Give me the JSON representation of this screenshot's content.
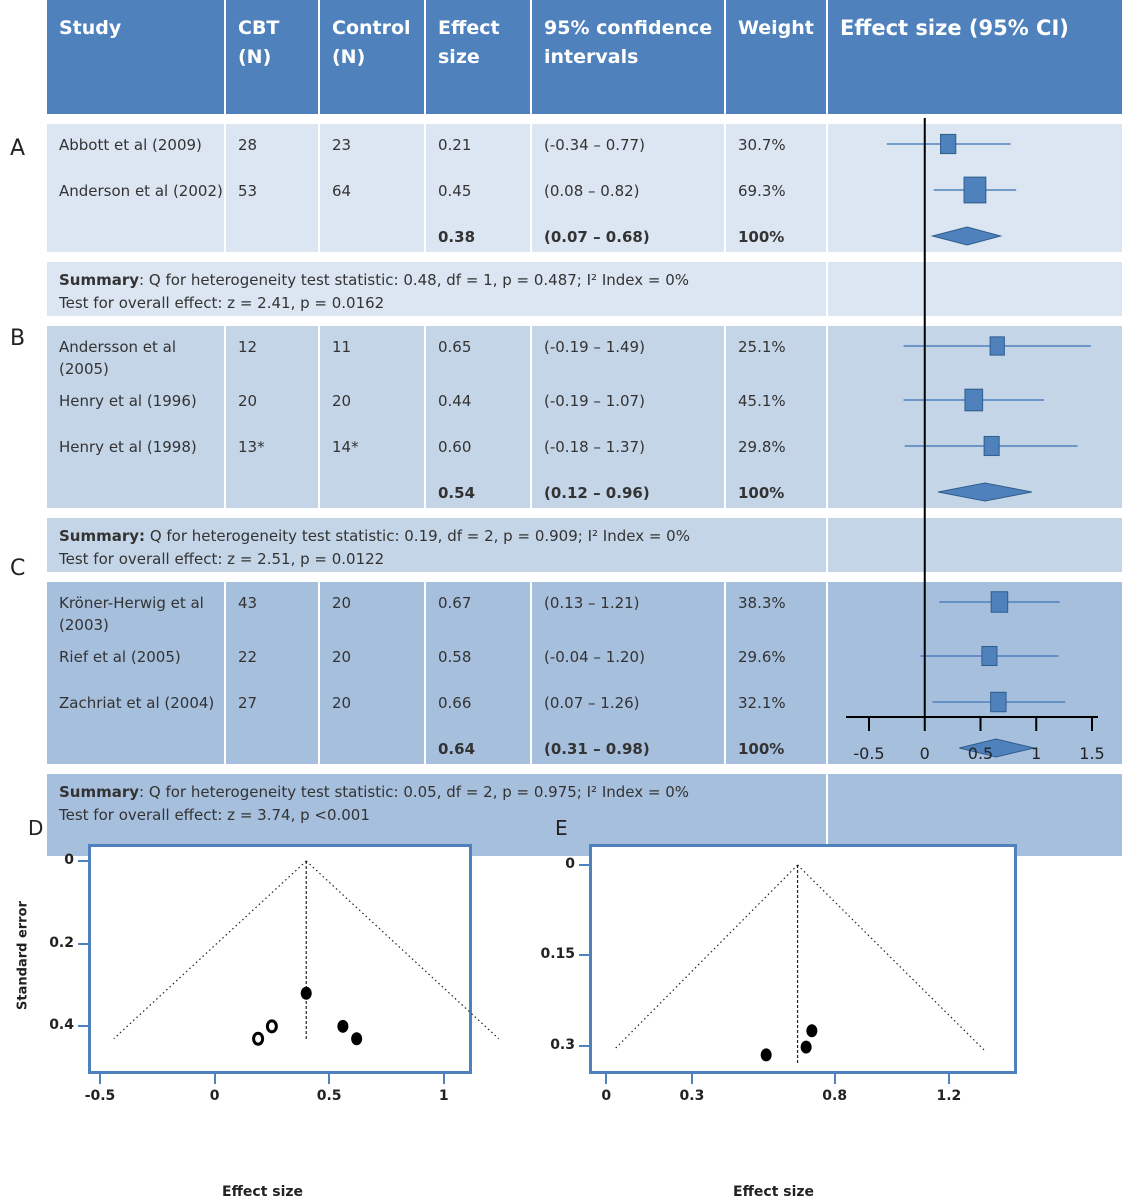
{
  "columns": {
    "study": "Study",
    "cbt": "CBT (N)",
    "control": "Control (N)",
    "effect": "Effect size",
    "ci": "95% confidence intervals",
    "weight": "Weight",
    "plot": "Effect size (95% CI)"
  },
  "groups": [
    {
      "label": "A",
      "studies": [
        {
          "study": "Abbott et al (2009)",
          "cbt": "28",
          "control": "23",
          "effect": "0.21",
          "ci": "(-0.34 – 0.77)",
          "weight": "30.7%",
          "es": 0.21,
          "lo": -0.34,
          "hi": 0.77
        },
        {
          "study": "Anderson et al (2002)",
          "cbt": "53",
          "control": "64",
          "effect": "0.45",
          "ci": "(0.08 – 0.82)",
          "weight": "69.3%",
          "es": 0.45,
          "lo": 0.08,
          "hi": 0.82
        }
      ],
      "pooled": {
        "effect": "0.38",
        "ci": "(0.07 – 0.68)",
        "weight": "100%",
        "es": 0.38,
        "lo": 0.07,
        "hi": 0.68
      },
      "summary_label": "Summary",
      "summary_line1": ": Q for heterogeneity test statistic: 0.48, df = 1, p = 0.487; I² Index = 0%",
      "summary_line2": "Test for overall effect: z = 2.41, p = 0.0162"
    },
    {
      "label": "B",
      "studies": [
        {
          "study": "Andersson et al (2005)",
          "cbt": "12",
          "control": "11",
          "effect": "0.65",
          "ci": "(-0.19 – 1.49)",
          "weight": "25.1%",
          "es": 0.65,
          "lo": -0.19,
          "hi": 1.49
        },
        {
          "study": "Henry et al (1996)",
          "cbt": "20",
          "control": "20",
          "effect": "0.44",
          "ci": "(-0.19 – 1.07)",
          "weight": "45.1%",
          "es": 0.44,
          "lo": -0.19,
          "hi": 1.07
        },
        {
          "study": "Henry et al (1998)",
          "cbt": "13*",
          "control": "14*",
          "effect": "0.60",
          "ci": "(-0.18 – 1.37)",
          "weight": "29.8%",
          "es": 0.6,
          "lo": -0.18,
          "hi": 1.37
        }
      ],
      "pooled": {
        "effect": "0.54",
        "ci": "(0.12 – 0.96)",
        "weight": "100%",
        "es": 0.54,
        "lo": 0.12,
        "hi": 0.96
      },
      "summary_label": "Summary:",
      "summary_line1": " Q for heterogeneity test statistic: 0.19, df = 2, p = 0.909; I² Index = 0%",
      "summary_line2": "Test for overall effect: z = 2.51, p = 0.0122"
    },
    {
      "label": "C",
      "studies": [
        {
          "study": "Kröner-Herwig et al (2003)",
          "cbt": "43",
          "control": "20",
          "effect": "0.67",
          "ci": "(0.13 – 1.21)",
          "weight": "38.3%",
          "es": 0.67,
          "lo": 0.13,
          "hi": 1.21
        },
        {
          "study": "Rief et al (2005)",
          "cbt": "22",
          "control": "20",
          "effect": "0.58",
          "ci": "(-0.04 – 1.20)",
          "weight": "29.6%",
          "es": 0.58,
          "lo": -0.04,
          "hi": 1.2
        },
        {
          "study": "Zachriat et al (2004)",
          "cbt": "27",
          "control": "20",
          "effect": "0.66",
          "ci": "(0.07 – 1.26)",
          "weight": "32.1%",
          "es": 0.66,
          "lo": 0.07,
          "hi": 1.26
        }
      ],
      "pooled": {
        "effect": "0.64",
        "ci": "(0.31 – 0.98)",
        "weight": "100%",
        "es": 0.64,
        "lo": 0.31,
        "hi": 0.98
      },
      "summary_label": "Summary",
      "summary_line1": ": Q for heterogeneity test statistic: 0.05, df = 2, p = 0.975; I² Index = 0%",
      "summary_line2": "Test for overall effect: z = 3.74, p <0.001"
    }
  ],
  "colors": {
    "header": "#4f81bd",
    "groupA": "#dce6f2",
    "groupB": "#c5d5e8",
    "groupC": "#a6bfdd",
    "marker": "#4f81bd"
  },
  "chart_data": [
    {
      "type": "forest",
      "xlim": [
        -0.5,
        1.5
      ],
      "xticks": [
        "-0.5",
        "0",
        "0.5",
        "1",
        "1.5"
      ],
      "null_line": 0
    },
    {
      "type": "scatter",
      "label": "D",
      "xlabel": "Effect size",
      "ylabel": "Standard error",
      "xlim": [
        -0.5,
        1.25
      ],
      "ylim": [
        0.45,
        0
      ],
      "xticks": [
        "-0.5",
        "0",
        "0.5",
        "1"
      ],
      "yticks": [
        "0",
        "0.2",
        "0.4"
      ],
      "pooled_es": 0.4,
      "funnel": {
        "apex": [
          0.4,
          0
        ],
        "left_base": [
          -0.44,
          0.43
        ],
        "right_base": [
          1.24,
          0.43
        ]
      },
      "points": [
        {
          "x": 0.4,
          "y": 0.32,
          "filled": true
        },
        {
          "x": 0.25,
          "y": 0.4,
          "filled": false
        },
        {
          "x": 0.19,
          "y": 0.43,
          "filled": false
        },
        {
          "x": 0.56,
          "y": 0.4,
          "filled": true
        },
        {
          "x": 0.62,
          "y": 0.43,
          "filled": true
        }
      ]
    },
    {
      "type": "scatter",
      "label": "E",
      "xlabel": "Effect size",
      "ylabel": "",
      "xlim": [
        -0.05,
        1.4
      ],
      "ylim": [
        0.34,
        0
      ],
      "xticks": [
        "0",
        "0.3",
        "0.8",
        "1.2"
      ],
      "yticks": [
        "0",
        "0.15",
        "0.3"
      ],
      "pooled_es": 0.67,
      "funnel": {
        "apex": [
          0.67,
          0
        ],
        "left_base": [
          0.03,
          0.305
        ],
        "right_base": [
          1.33,
          0.31
        ]
      },
      "points": [
        {
          "x": 0.72,
          "y": 0.275,
          "filled": true
        },
        {
          "x": 0.7,
          "y": 0.302,
          "filled": true
        },
        {
          "x": 0.56,
          "y": 0.315,
          "filled": true
        }
      ]
    }
  ]
}
